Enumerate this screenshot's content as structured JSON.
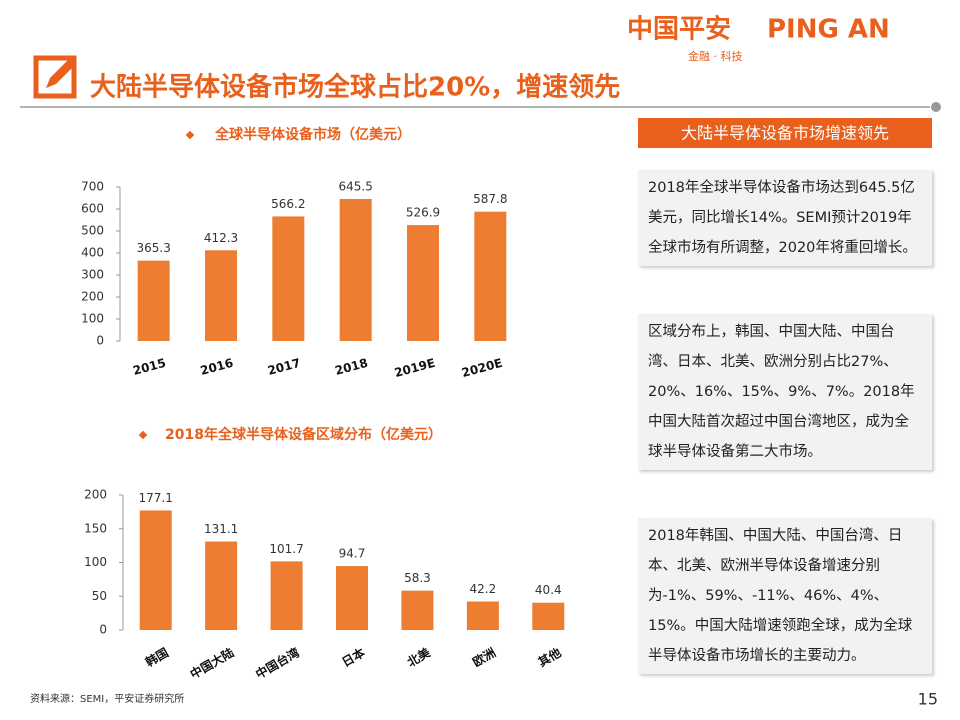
{
  "header": {
    "logo_cn": "中国平安",
    "logo_en": "PING AN",
    "logo_sub": "金融 · 科技",
    "title": "大陆半导体设备市场全球占比20%，增速领先"
  },
  "chart_data": [
    {
      "type": "bar",
      "title": "全球半导体设备市场（亿美元）",
      "categories": [
        "2015",
        "2016",
        "2017",
        "2018",
        "2019E",
        "2020E"
      ],
      "values": [
        365.3,
        412.3,
        566.2,
        645.5,
        526.9,
        587.8
      ],
      "color": "#ed7d31",
      "ylim": [
        0,
        700
      ],
      "yticks": [
        0,
        100,
        200,
        300,
        400,
        500,
        600,
        700
      ],
      "grid": false
    },
    {
      "type": "bar",
      "title": "2018年全球半导体设备区域分布（亿美元）",
      "categories": [
        "韩国",
        "中国大陆",
        "中国台湾",
        "日本",
        "北美",
        "欧洲",
        "其他"
      ],
      "values": [
        177.1,
        131.1,
        101.7,
        94.7,
        58.3,
        42.2,
        40.4
      ],
      "color": "#ed7d31",
      "ylim": [
        0,
        200
      ],
      "yticks": [
        0,
        50,
        100,
        150,
        200
      ],
      "grid": false
    }
  ],
  "sidebar": {
    "heading": "大陆半导体设备市场增速领先",
    "paragraphs": [
      "2018年全球半导体设备市场达到645.5亿美元，同比增长14%。SEMI预计2019年全球市场有所调整，2020年将重回增长。",
      "区域分布上，韩国、中国大陆、中国台湾、日本、北美、欧洲分别占比27%、20%、16%、15%、9%、7%。2018年中国大陆首次超过中国台湾地区，成为全球半导体设备第二大市场。",
      "2018年韩国、中国大陆、中国台湾、日本、北美、欧洲半导体设备增速分别为-1%、59%、-11%、46%、4%、15%。中国大陆增速领跑全球，成为全球半导体设备市场增长的主要动力。"
    ]
  },
  "footer": {
    "source": "资料来源：SEMI，平安证券研究所",
    "page": "15"
  }
}
